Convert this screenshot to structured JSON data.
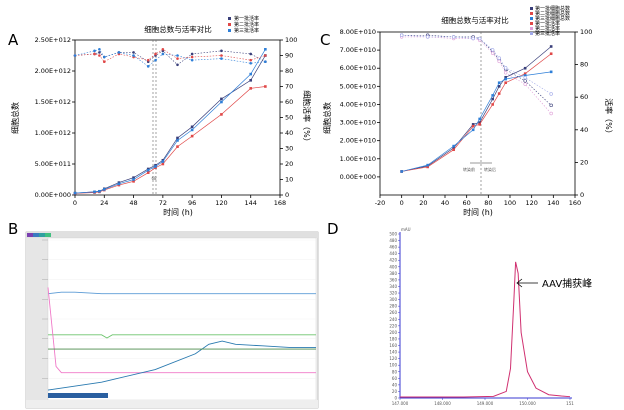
{
  "panels": {
    "a": "A",
    "b": "B",
    "c": "C",
    "d": "D"
  },
  "chart_data": [
    {
      "id": "A",
      "type": "line",
      "title": "细胞总数与活率对比",
      "xlabel": "时间 (h)",
      "ylabel": "细胞总数",
      "y2label": "细胞活率（%）",
      "xlim": [
        0,
        168
      ],
      "xticks": [
        "0",
        "24",
        "48",
        "72",
        "96",
        "120",
        "144",
        "168"
      ],
      "ylim": [
        0,
        2500000000000.0
      ],
      "yticks": [
        "0.00E+000",
        "5.00E+011",
        "1.00E+012",
        "1.50E+012",
        "2.00E+012",
        "2.50E+012"
      ],
      "y2lim": [
        0,
        100
      ],
      "y2ticks": [
        "0",
        "10",
        "20",
        "30",
        "40",
        "50",
        "60",
        "70",
        "80",
        "90",
        "100"
      ],
      "legend": [
        "第一批活率",
        "第二批活率",
        "第三批活率"
      ],
      "marker_note": "68",
      "total_series": [
        {
          "name": "第一批",
          "color": "#3a3f7a",
          "x": [
            0,
            16,
            20,
            24,
            36,
            48,
            60,
            66,
            72,
            84,
            96,
            120,
            144,
            156
          ],
          "y": [
            30000000000.0,
            50000000000.0,
            60000000000.0,
            100000000000.0,
            200000000000.0,
            280000000000.0,
            420000000000.0,
            480000000000.0,
            560000000000.0,
            920000000000.0,
            1100000000000.0,
            1550000000000.0,
            1850000000000.0,
            2250000000000.0
          ]
        },
        {
          "name": "第二批",
          "color": "#e04848",
          "x": [
            0,
            16,
            20,
            24,
            36,
            48,
            60,
            66,
            72,
            84,
            96,
            120,
            144,
            156
          ],
          "y": [
            25000000000.0,
            40000000000.0,
            50000000000.0,
            80000000000.0,
            160000000000.0,
            220000000000.0,
            360000000000.0,
            440000000000.0,
            500000000000.0,
            780000000000.0,
            950000000000.0,
            1300000000000.0,
            1720000000000.0,
            1750000000000.0
          ]
        },
        {
          "name": "第三批",
          "color": "#2e7fd8",
          "x": [
            0,
            16,
            20,
            24,
            36,
            48,
            60,
            66,
            72,
            84,
            96,
            120,
            144,
            156
          ],
          "y": [
            30000000000.0,
            50000000000.0,
            60000000000.0,
            90000000000.0,
            180000000000.0,
            250000000000.0,
            400000000000.0,
            460000000000.0,
            540000000000.0,
            880000000000.0,
            1050000000000.0,
            1500000000000.0,
            1950000000000.0,
            2350000000000.0
          ]
        }
      ],
      "viability_series": [
        {
          "name": "第一批活率",
          "color": "#3a3f7a",
          "x": [
            0,
            16,
            20,
            24,
            36,
            48,
            60,
            66,
            72,
            84,
            96,
            120,
            144,
            156
          ],
          "y": [
            90,
            91,
            92,
            89,
            92,
            92,
            86,
            90,
            93,
            84,
            91,
            93,
            91,
            86
          ]
        },
        {
          "name": "第二批活率",
          "color": "#e04848",
          "x": [
            0,
            16,
            20,
            24,
            36,
            48,
            60,
            66,
            72,
            84,
            96,
            120,
            144,
            156
          ],
          "y": [
            90,
            91,
            90,
            86,
            91,
            89,
            87,
            91,
            94,
            88,
            89,
            90,
            87,
            90
          ]
        },
        {
          "name": "第三批活率",
          "color": "#2e7fd8",
          "x": [
            0,
            16,
            20,
            24,
            36,
            48,
            60,
            66,
            72,
            84,
            96,
            120,
            144,
            156
          ],
          "y": [
            90,
            93,
            94,
            89,
            92,
            90,
            83,
            87,
            91,
            90,
            87,
            88,
            85,
            86
          ]
        }
      ]
    },
    {
      "id": "C",
      "type": "line",
      "title": "细胞总数与活率对比",
      "xlabel": "时间 (h)",
      "ylabel": "细胞总数",
      "y2label": "活率（%）",
      "xlim": [
        -20,
        160
      ],
      "xticks": [
        "-20",
        "0",
        "20",
        "40",
        "60",
        "80",
        "100",
        "120",
        "140",
        "160"
      ],
      "ylim": [
        -10000000000.0,
        80000000000.0
      ],
      "yticks": [
        "0.00E+000",
        "1.00E+010",
        "2.00E+010",
        "3.00E+010",
        "4.00E+010",
        "5.00E+010",
        "6.00E+010",
        "7.00E+010",
        "8.00E+010"
      ],
      "y2lim": [
        0,
        100
      ],
      "y2ticks": [
        "0",
        "20",
        "40",
        "60",
        "80",
        "100"
      ],
      "legend": [
        "第一批细胞总数",
        "第二批细胞总数",
        "第三批细胞总数",
        "第一批活率",
        "第二批活率",
        "第三批活率"
      ],
      "annotation": [
        "转染前",
        "转染后"
      ],
      "total_series": [
        {
          "name": "第一批细胞总数",
          "color": "#3a3f7a",
          "x": [
            0,
            24,
            48,
            66,
            72,
            84,
            90,
            96,
            114,
            138
          ],
          "y": [
            3000000000.0,
            6000000000.0,
            16000000000.0,
            29000000000.0,
            30000000000.0,
            43000000000.0,
            50000000000.0,
            55000000000.0,
            60000000000.0,
            72000000000.0
          ]
        },
        {
          "name": "第二批细胞总数",
          "color": "#e04848",
          "x": [
            0,
            24,
            48,
            66,
            72,
            84,
            90,
            96,
            114,
            138
          ],
          "y": [
            3000000000.0,
            5500000000.0,
            15000000000.0,
            28000000000.0,
            29000000000.0,
            40000000000.0,
            46000000000.0,
            52000000000.0,
            57000000000.0,
            68000000000.0
          ]
        },
        {
          "name": "第三批细胞总数",
          "color": "#2e7fd8",
          "x": [
            0,
            24,
            48,
            66,
            72,
            84,
            90,
            96,
            114,
            138
          ],
          "y": [
            3000000000.0,
            6500000000.0,
            17000000000.0,
            26000000000.0,
            32000000000.0,
            45000000000.0,
            52000000000.0,
            54000000000.0,
            56000000000.0,
            58000000000.0
          ]
        }
      ],
      "viability_series": [
        {
          "name": "第一批活率",
          "color": "#3a3f7a",
          "x": [
            0,
            24,
            48,
            66,
            72,
            84,
            90,
            96,
            114,
            138
          ],
          "y": [
            98,
            98,
            97,
            97,
            96,
            88,
            83,
            77,
            70,
            55
          ]
        },
        {
          "name": "第二批活率",
          "color": "#e0a0d8",
          "x": [
            0,
            24,
            48,
            66,
            72,
            84,
            90,
            96,
            114,
            138
          ],
          "y": [
            97,
            97,
            96,
            96,
            95,
            87,
            82,
            75,
            68,
            50
          ]
        },
        {
          "name": "第三批活率",
          "color": "#a0a8e8",
          "x": [
            0,
            24,
            48,
            66,
            72,
            84,
            90,
            96,
            114,
            138
          ],
          "y": [
            98,
            97,
            97,
            96,
            96,
            89,
            84,
            78,
            72,
            62
          ]
        }
      ]
    },
    {
      "id": "B",
      "type": "line",
      "title": "",
      "series": [
        {
          "name": "trace-upper",
          "color": "#5b9bd5",
          "x": [
            0,
            5,
            10,
            20,
            40,
            60,
            80,
            100
          ],
          "y": [
            66,
            67,
            67,
            66,
            66,
            66,
            66,
            66
          ]
        },
        {
          "name": "trace-mid",
          "color": "#6cc46c",
          "x": [
            0,
            5,
            20,
            22,
            24,
            40,
            60,
            80,
            100
          ],
          "y": [
            40,
            40,
            40,
            38,
            40,
            40,
            40,
            40,
            40
          ]
        },
        {
          "name": "trace-low",
          "color": "#f07ac8",
          "x": [
            0,
            3,
            5,
            10,
            20,
            40,
            60,
            80,
            100
          ],
          "y": [
            70,
            20,
            16,
            16,
            16,
            16,
            16,
            16,
            16
          ]
        },
        {
          "name": "trace-rise",
          "color": "#2a7ab0",
          "x": [
            0,
            20,
            40,
            55,
            60,
            65,
            70,
            80,
            90,
            100
          ],
          "y": [
            5,
            10,
            18,
            28,
            34,
            36,
            34,
            33,
            32,
            32
          ]
        },
        {
          "name": "trace-green",
          "color": "#4a8a4a",
          "x": [
            0,
            20,
            40,
            60,
            80,
            100
          ],
          "y": [
            31,
            31,
            31,
            31,
            31,
            31
          ]
        }
      ]
    },
    {
      "id": "D",
      "type": "line",
      "title": "",
      "peak_label": "AAV捕获峰",
      "xlim": [
        147.0,
        151.0
      ],
      "xticks": [
        "147.000",
        "148.000",
        "149.000",
        "150.000",
        "151"
      ],
      "ylim": [
        0,
        500
      ],
      "yticks": [
        "0",
        "20",
        "40",
        "60",
        "80",
        "100",
        "120",
        "140",
        "160",
        "180",
        "200",
        "220",
        "240",
        "260",
        "280",
        "300",
        "320",
        "340",
        "360",
        "380",
        "400",
        "420",
        "440",
        "460",
        "480",
        "500"
      ],
      "y_unit": "mAU",
      "series": [
        {
          "name": "UV",
          "color": "#d03070",
          "x": [
            147.0,
            148.5,
            149.2,
            149.5,
            149.6,
            149.68,
            149.72,
            149.78,
            149.85,
            150.0,
            150.2,
            150.5,
            150.8,
            151.0
          ],
          "y": [
            3,
            3,
            5,
            20,
            90,
            300,
            415,
            380,
            200,
            80,
            30,
            10,
            6,
            4
          ]
        }
      ]
    }
  ]
}
